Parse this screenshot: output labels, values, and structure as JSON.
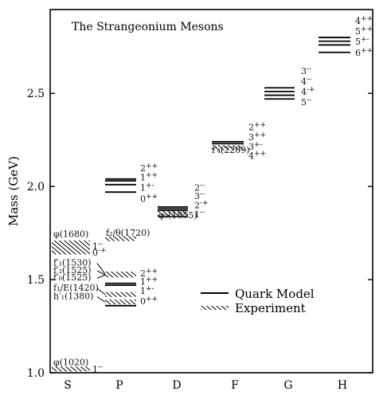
{
  "chart_data": {
    "type": "level-diagram",
    "title": "The Strangeonium Mesons",
    "ylabel": "Mass (GeV)",
    "ylim": [
      1.0,
      2.95
    ],
    "yticks": [
      {
        "value": 1.0,
        "label": "1.0"
      },
      {
        "value": 1.5,
        "label": "1.5"
      },
      {
        "value": 2.0,
        "label": "2.0"
      },
      {
        "value": 2.5,
        "label": "2.5"
      }
    ],
    "categories": [
      "S",
      "P",
      "D",
      "F",
      "G",
      "H"
    ],
    "legend": {
      "position": "lower-right",
      "entries": [
        {
          "style": "solid",
          "label": "Quark Model"
        },
        {
          "style": "hatched",
          "label": "Experiment"
        }
      ]
    },
    "quark_model_levels": [
      {
        "wave": "S",
        "mass": 1.66,
        "jpc": "0-+"
      },
      {
        "wave": "S",
        "mass": 1.69,
        "jpc": "1--"
      },
      {
        "wave": "S",
        "mass": 1.02,
        "jpc": "1--"
      },
      {
        "wave": "P",
        "mass": 1.53,
        "jpc": "2++"
      },
      {
        "wave": "P",
        "mass": 1.48,
        "jpc": "1++"
      },
      {
        "wave": "P",
        "mass": 1.47,
        "jpc": "1+-"
      },
      {
        "wave": "P",
        "mass": 1.36,
        "jpc": "0++"
      },
      {
        "wave": "P",
        "mass": 2.04,
        "jpc": "2++"
      },
      {
        "wave": "P",
        "mass": 2.03,
        "jpc": "1++"
      },
      {
        "wave": "P",
        "mass": 2.01,
        "jpc": "1+-"
      },
      {
        "wave": "P",
        "mass": 1.97,
        "jpc": "0++"
      },
      {
        "wave": "D",
        "mass": 1.89,
        "jpc": "2--"
      },
      {
        "wave": "D",
        "mass": 1.88,
        "jpc": "3--"
      },
      {
        "wave": "D",
        "mass": 1.87,
        "jpc": "2-+"
      },
      {
        "wave": "D",
        "mass": 1.84,
        "jpc": "1--"
      },
      {
        "wave": "F",
        "mass": 2.24,
        "jpc": "2++"
      },
      {
        "wave": "F",
        "mass": 2.23,
        "jpc": "3++"
      },
      {
        "wave": "F",
        "mass": 2.21,
        "jpc": "3+-"
      },
      {
        "wave": "F",
        "mass": 2.2,
        "jpc": "4++"
      },
      {
        "wave": "G",
        "mass": 2.53,
        "jpc": "3--"
      },
      {
        "wave": "G",
        "mass": 2.51,
        "jpc": "4--"
      },
      {
        "wave": "G",
        "mass": 2.49,
        "jpc": "4-+"
      },
      {
        "wave": "G",
        "mass": 2.47,
        "jpc": "5--"
      },
      {
        "wave": "H",
        "mass": 2.8,
        "jpc": "4++"
      },
      {
        "wave": "H",
        "mass": 2.78,
        "jpc": "5++"
      },
      {
        "wave": "H",
        "mass": 2.76,
        "jpc": "5+-"
      },
      {
        "wave": "H",
        "mass": 2.72,
        "jpc": "6++"
      }
    ],
    "experiment_levels": [
      {
        "wave": "S",
        "mass": 1.68,
        "name": "φ(1680)"
      },
      {
        "wave": "S",
        "mass": 1.02,
        "name": "φ(1020)"
      },
      {
        "wave": "P",
        "mass": 1.53,
        "name": "f′₁(1530)"
      },
      {
        "wave": "P",
        "mass": 1.525,
        "name": "f′₂(1525)"
      },
      {
        "wave": "P",
        "mass": 1.525,
        "name": "f′₀(1525)"
      },
      {
        "wave": "P",
        "mass": 1.42,
        "name": "f₁/E(1420)"
      },
      {
        "wave": "P",
        "mass": 1.38,
        "name": "h′₁(1380)"
      },
      {
        "wave": "P",
        "mass": 1.72,
        "name": "f₂/θ(1720)"
      },
      {
        "wave": "D",
        "mass": 1.855,
        "name": "φ₃(1855)"
      },
      {
        "wave": "F",
        "mass": 2.209,
        "name": "f′₄(2209)"
      }
    ],
    "state_labels": {
      "S_upper": [
        "1",
        "0"
      ],
      "S_lower": [
        "1"
      ],
      "P_lower": [
        "2",
        "1",
        "1",
        "0"
      ],
      "P_upper": [
        "2",
        "1",
        "1",
        "0"
      ],
      "D": [
        "2",
        "3",
        "2",
        "1"
      ],
      "F": [
        "2",
        "3",
        "3",
        "4"
      ],
      "G": [
        "3",
        "4",
        "4",
        "5"
      ],
      "H": [
        "4",
        "5",
        "5",
        "6"
      ]
    },
    "state_label_pc": {
      "S_upper": [
        "--",
        "-+"
      ],
      "S_lower": [
        "--"
      ],
      "P_lower": [
        "++",
        "++",
        "+-",
        "++"
      ],
      "P_upper": [
        "++",
        "++",
        "+-",
        "++"
      ],
      "D": [
        "--",
        "--",
        "-+",
        "--"
      ],
      "F": [
        "++",
        "++",
        "+-",
        "++"
      ],
      "G": [
        "--",
        "--",
        "-+",
        "--"
      ],
      "H": [
        "++",
        "++",
        "+-",
        "++"
      ]
    }
  }
}
